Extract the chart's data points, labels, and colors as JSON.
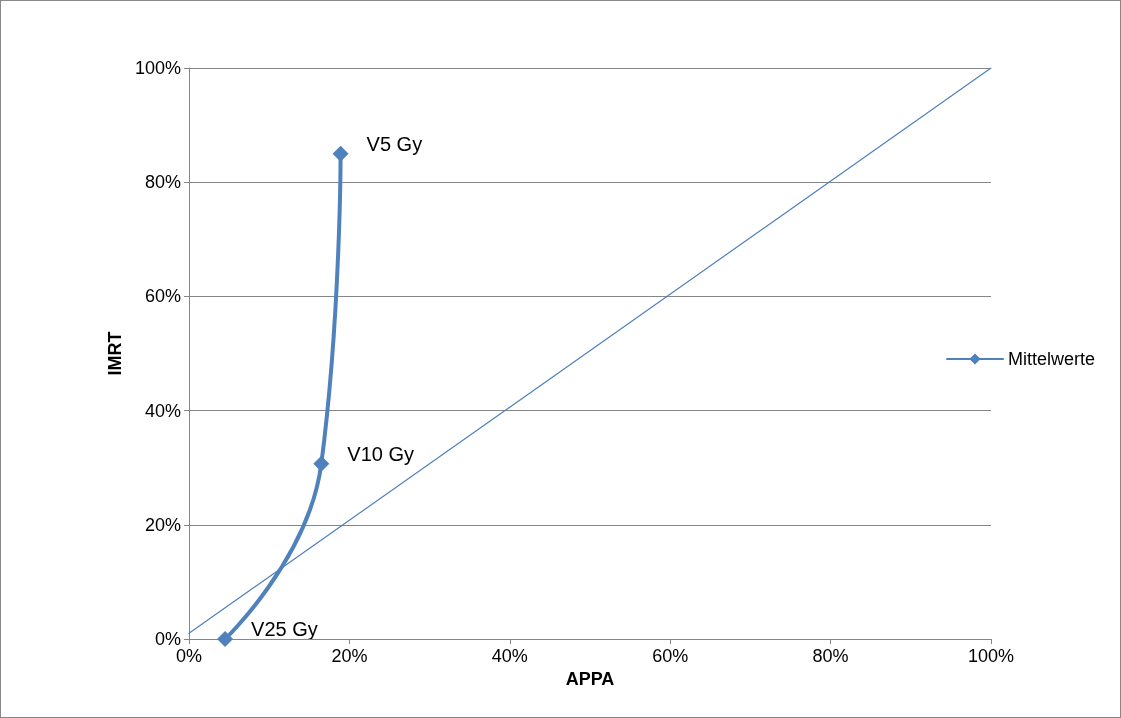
{
  "chart_data": {
    "type": "line",
    "xlabel": "APPA",
    "ylabel": "IMRT",
    "xlim": [
      0,
      100
    ],
    "ylim": [
      0,
      100
    ],
    "xticks": [
      {
        "value": 0,
        "label": "0%"
      },
      {
        "value": 20,
        "label": "20%"
      },
      {
        "value": 40,
        "label": "40%"
      },
      {
        "value": 60,
        "label": "60%"
      },
      {
        "value": 80,
        "label": "80%"
      },
      {
        "value": 100,
        "label": "100%"
      }
    ],
    "yticks": [
      {
        "value": 0,
        "label": "0%"
      },
      {
        "value": 20,
        "label": "20%"
      },
      {
        "value": 40,
        "label": "40%"
      },
      {
        "value": 60,
        "label": "60%"
      },
      {
        "value": 80,
        "label": "80%"
      },
      {
        "value": 100,
        "label": "100%"
      }
    ],
    "series": [
      {
        "name": "Mittelwerte",
        "color": "#4f81bd",
        "x": [
          4.5,
          16.5,
          18.9
        ],
        "values": [
          0,
          30.7,
          85
        ],
        "marker": "diamond"
      },
      {
        "color": "#4f81bd",
        "x": [
          0,
          100
        ],
        "values": [
          1,
          100
        ],
        "marker": "none"
      }
    ],
    "annotations": [
      {
        "text": "V5 Gy",
        "x": 18.9,
        "y": 85
      },
      {
        "text": "V10 Gy",
        "x": 16.5,
        "y": 30.7
      },
      {
        "text": "V25 Gy",
        "x": 4.5,
        "y": 0
      }
    ],
    "grid": "y",
    "legend": "right"
  }
}
